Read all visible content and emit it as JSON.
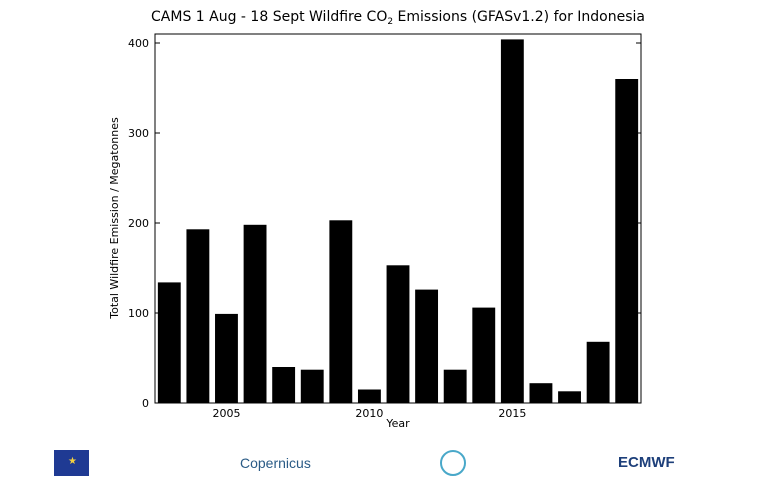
{
  "chart_data": {
    "type": "bar",
    "title_main": "CAMS 1 Aug - 18 Sept Wildfire CO",
    "title_sub": "2",
    "title_rest": " Emissions (GFASv1.2) for Indonesia",
    "xlabel": "Year",
    "ylabel": "Total Wildfire Emission / Megatonnes",
    "x": [
      2003,
      2004,
      2005,
      2006,
      2007,
      2008,
      2009,
      2010,
      2011,
      2012,
      2013,
      2014,
      2015,
      2016,
      2017,
      2018,
      2019
    ],
    "values": [
      134,
      193,
      99,
      198,
      40,
      37,
      203,
      15,
      153,
      126,
      37,
      106,
      404,
      22,
      13,
      68,
      360
    ],
    "xlim": [
      2002.5,
      2019.5
    ],
    "ylim": [
      0,
      410
    ],
    "xticks": [
      2005,
      2010,
      2015
    ],
    "xtick_labels": [
      "2005",
      "2010",
      "2015"
    ],
    "yticks": [
      0,
      100,
      200,
      300,
      400
    ],
    "ytick_labels": [
      "0",
      "100",
      "200",
      "300",
      "400"
    ],
    "bar_color": "#000000",
    "grid": false
  },
  "logos": {
    "eu": {
      "icon": "eu-flag-icon",
      "text": ""
    },
    "copernicus": {
      "icon": "copernicus-icon",
      "text": "Copernicus"
    },
    "cams": {
      "icon": "cams-icon",
      "text": ""
    },
    "ecmwf": {
      "icon": "ecmwf-icon",
      "text": "ECMWF"
    }
  }
}
